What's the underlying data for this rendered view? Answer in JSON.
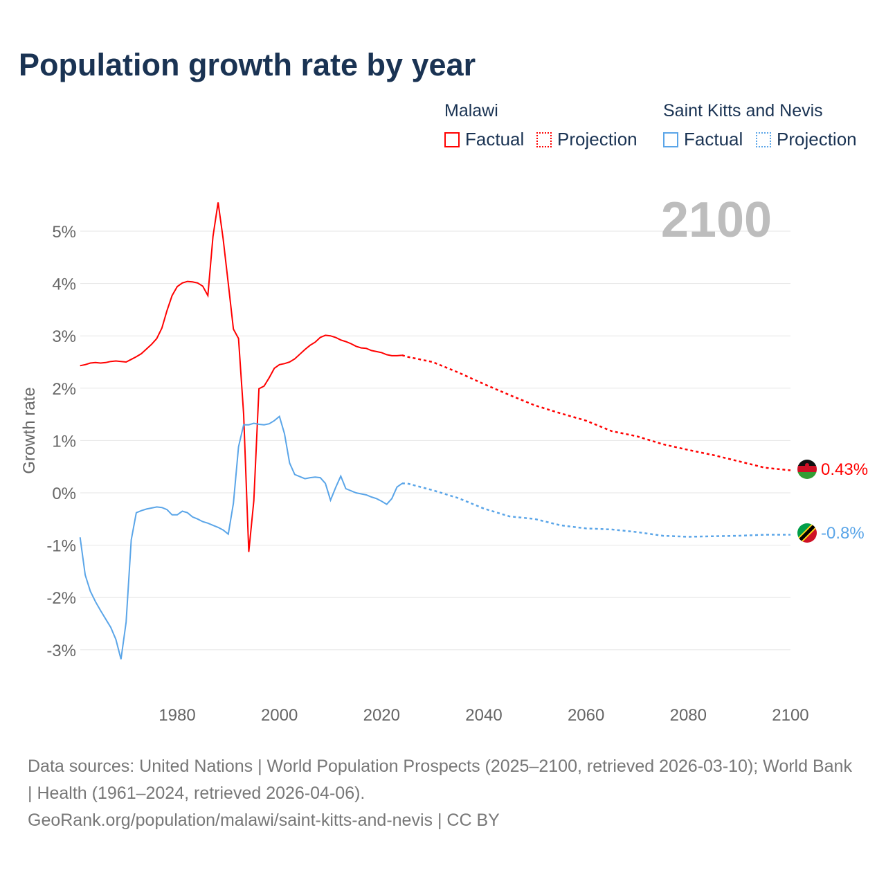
{
  "title": "Population growth rate by year",
  "legend": {
    "groups": [
      {
        "name": "Malawi",
        "factual": "Factual",
        "projection": "Projection",
        "color": "#ff0000"
      },
      {
        "name": "Saint Kitts and Nevis",
        "factual": "Factual",
        "projection": "Projection",
        "color": "#5aa5e8"
      }
    ]
  },
  "year_label": "2100",
  "footer": {
    "sources": "Data sources: United Nations | World Population Prospects (2025–2100, retrieved 2026-03-10); World Bank | Health (1961–2024, retrieved 2026-04-06).",
    "link": "GeoRank.org/population/malawi/saint-kitts-and-nevis | CC BY"
  },
  "chart_data": {
    "type": "line",
    "title": "Population growth rate by year",
    "xlabel": "",
    "ylabel": "Growth rate",
    "xlim": [
      1961,
      2100
    ],
    "ylim": [
      -4,
      5.8
    ],
    "xticks": [
      1980,
      2000,
      2020,
      2040,
      2060,
      2080,
      2100
    ],
    "yticks": [
      5,
      4,
      3,
      2,
      1,
      0,
      -1,
      -2,
      -3
    ],
    "ytick_labels": [
      "5%",
      "4%",
      "3%",
      "2%",
      "1%",
      "0%",
      "-1%",
      "-2%",
      "-3%"
    ],
    "grid": true,
    "series": [
      {
        "name": "Malawi",
        "color": "#ff0000",
        "end_label": "0.43%",
        "factual": {
          "x_start": 1961,
          "values": [
            2.43,
            2.45,
            2.48,
            2.49,
            2.48,
            2.49,
            2.51,
            2.52,
            2.51,
            2.5,
            2.55,
            2.6,
            2.66,
            2.75,
            2.84,
            2.95,
            3.15,
            3.48,
            3.77,
            3.94,
            4.01,
            4.04,
            4.03,
            4.01,
            3.95,
            3.77,
            4.9,
            5.55,
            4.85,
            4.0,
            3.13,
            2.95,
            1.5,
            -1.13,
            -0.15,
            1.99,
            2.04,
            2.2,
            2.38,
            2.45,
            2.47,
            2.5,
            2.56,
            2.65,
            2.74,
            2.82,
            2.88,
            2.97,
            3.01,
            3.0,
            2.97,
            2.92,
            2.89,
            2.85,
            2.8,
            2.77,
            2.76,
            2.72,
            2.7,
            2.68,
            2.64,
            2.62,
            2.62,
            2.63
          ]
        },
        "projection": {
          "x": [
            2024,
            2025,
            2030,
            2035,
            2040,
            2045,
            2050,
            2055,
            2060,
            2065,
            2070,
            2075,
            2080,
            2085,
            2090,
            2095,
            2100
          ],
          "values": [
            2.63,
            2.6,
            2.5,
            2.3,
            2.08,
            1.87,
            1.67,
            1.52,
            1.38,
            1.18,
            1.08,
            0.93,
            0.82,
            0.72,
            0.6,
            0.48,
            0.43
          ]
        }
      },
      {
        "name": "Saint Kitts and Nevis",
        "color": "#5aa5e8",
        "end_label": "-0.8%",
        "factual": {
          "x_start": 1961,
          "values": [
            -0.85,
            -1.57,
            -1.88,
            -2.08,
            -2.25,
            -2.41,
            -2.57,
            -2.8,
            -3.18,
            -2.47,
            -0.9,
            -0.38,
            -0.34,
            -0.31,
            -0.29,
            -0.27,
            -0.28,
            -0.32,
            -0.42,
            -0.42,
            -0.35,
            -0.38,
            -0.46,
            -0.5,
            -0.55,
            -0.58,
            -0.62,
            -0.66,
            -0.71,
            -0.79,
            -0.2,
            0.88,
            1.3,
            1.3,
            1.33,
            1.31,
            1.3,
            1.32,
            1.38,
            1.46,
            1.13,
            0.57,
            0.35,
            0.31,
            0.27,
            0.29,
            0.3,
            0.29,
            0.18,
            -0.14,
            0.1,
            0.32,
            0.08,
            0.04,
            0.0,
            -0.02,
            -0.04,
            -0.08,
            -0.11,
            -0.16,
            -0.22,
            -0.11,
            0.11,
            0.18
          ]
        },
        "projection": {
          "x": [
            2024,
            2025,
            2030,
            2035,
            2040,
            2045,
            2050,
            2055,
            2060,
            2065,
            2070,
            2075,
            2080,
            2085,
            2090,
            2095,
            2100
          ],
          "values": [
            0.18,
            0.18,
            0.05,
            -0.1,
            -0.3,
            -0.45,
            -0.5,
            -0.62,
            -0.68,
            -0.7,
            -0.75,
            -0.82,
            -0.84,
            -0.83,
            -0.82,
            -0.8,
            -0.8
          ]
        }
      }
    ]
  }
}
